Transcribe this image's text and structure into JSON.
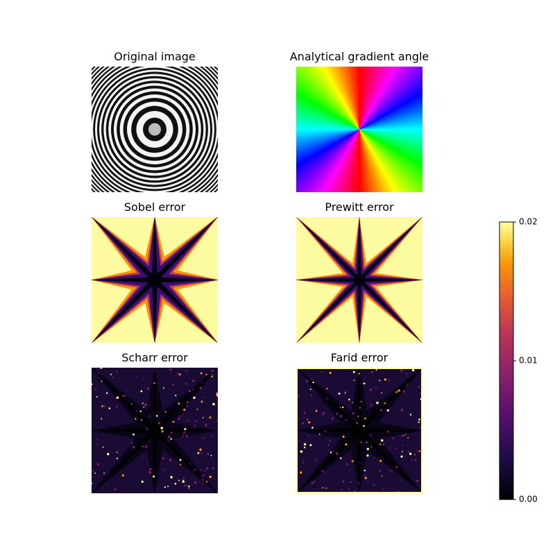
{
  "panels": [
    {
      "title": "Original image"
    },
    {
      "title": "Analytical gradient angle"
    },
    {
      "title": "Sobel error"
    },
    {
      "title": "Prewitt error"
    },
    {
      "title": "Scharr error"
    },
    {
      "title": "Farid error"
    }
  ],
  "colorbar": {
    "ylim": [
      0,
      0.02
    ],
    "yticks": [
      {
        "value": 0,
        "label": "0.00"
      },
      0.01,
      0.02
    ]
  }
}
